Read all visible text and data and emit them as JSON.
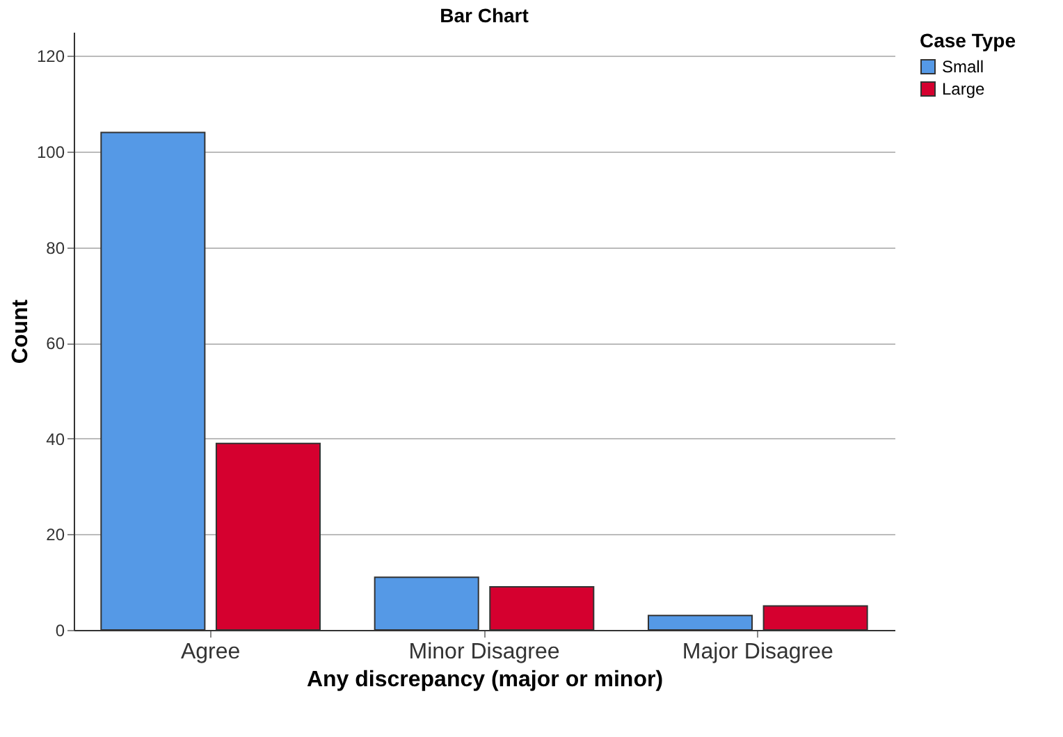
{
  "chart_data": {
    "type": "bar",
    "title": "Bar Chart",
    "xlabel": "Any discrepancy (major or minor)",
    "ylabel": "Count",
    "legend_title": "Case Type",
    "categories": [
      "Agree",
      "Minor Disagree",
      "Major Disagree"
    ],
    "series": [
      {
        "name": "Small",
        "color": "#5599e6",
        "values": [
          104,
          11,
          3
        ]
      },
      {
        "name": "Large",
        "color": "#d5002f",
        "values": [
          39,
          9,
          5
        ]
      }
    ],
    "ylim": [
      0,
      125
    ],
    "yticks": [
      0,
      20,
      40,
      60,
      80,
      100,
      120
    ],
    "grid": "y",
    "legend": "top right"
  }
}
